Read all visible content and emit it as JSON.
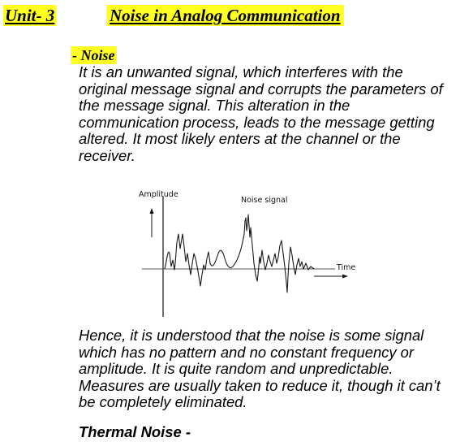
{
  "header": {
    "unit_label": "Unit- 3",
    "title": "Noise in Analog Communication"
  },
  "section": {
    "heading": "- Noise"
  },
  "paragraph1": [
    "It is an unwanted signal, which interferes with the",
    "original message signal and corrupts the parameters of",
    "the message signal. This alteration in the",
    "communication process, leads to the message getting",
    "altered. It most likely enters at the channel or the",
    "receiver."
  ],
  "figure": {
    "y_axis_label": "Amplitude",
    "signal_label": "Noise signal",
    "x_axis_label": "Time"
  },
  "paragraph2": [
    "Hence, it is understood that the noise is some signal",
    "which has no pattern and no constant frequency or",
    "amplitude. It is quite random and unpredictable.",
    "Measures are usually taken to reduce it, though it can’t",
    "be completely eliminated."
  ],
  "subheading": "Thermal Noise -",
  "colors": {
    "highlight": "#ffff22",
    "text": "#000000"
  }
}
